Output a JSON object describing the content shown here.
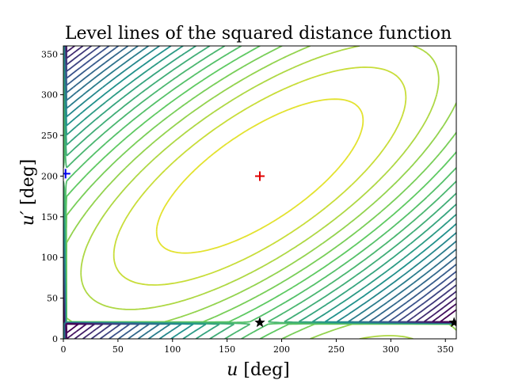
{
  "chart_data": {
    "type": "contour",
    "title": "Level lines of the squared distance function",
    "xlabel_var": "u",
    "ylabel_var": "u′",
    "unit": "[deg]",
    "xlim": [
      0,
      360
    ],
    "ylim": [
      0,
      360
    ],
    "xticks": [
      0,
      50,
      100,
      150,
      200,
      250,
      300,
      350
    ],
    "yticks": [
      0,
      50,
      100,
      150,
      200,
      250,
      300,
      350
    ],
    "grid": false,
    "colormap": [
      "#440154",
      "#3b528b",
      "#21918c",
      "#5ec962",
      "#fde725"
    ],
    "field": {
      "center": [
        180,
        200
      ],
      "period": 360,
      "level_count": 24
    },
    "markers": [
      {
        "name": "red plus",
        "shape": "plus",
        "color": "#e00000",
        "x": 180,
        "y": 200
      },
      {
        "name": "blue plus",
        "shape": "plus",
        "color": "#0000ee",
        "x": 2,
        "y": 203
      },
      {
        "name": "black star",
        "shape": "star",
        "color": "#000000",
        "x": 180,
        "y": 20
      },
      {
        "name": "black star edge",
        "shape": "star",
        "color": "#000000",
        "x": 358,
        "y": 20
      }
    ]
  }
}
